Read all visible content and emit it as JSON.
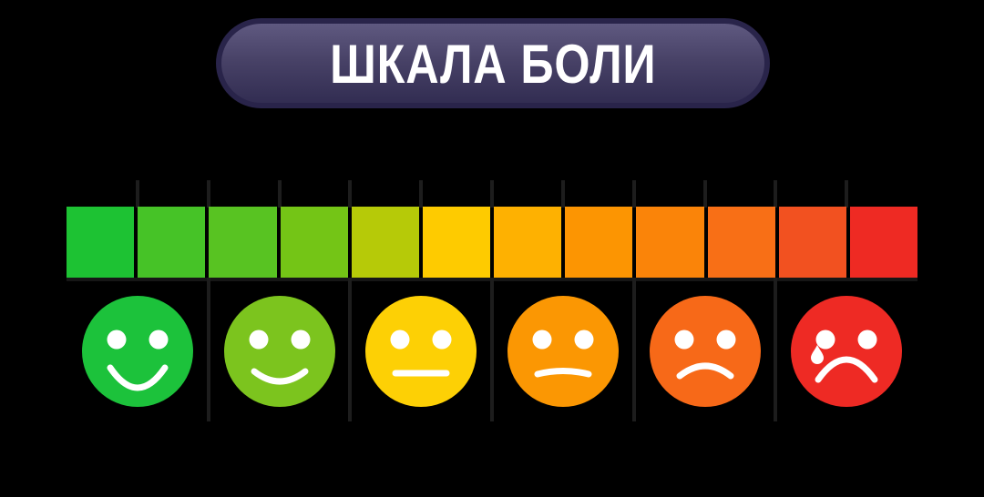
{
  "background_color": "#000000",
  "title": {
    "text": "ШКАЛА БОЛИ",
    "text_color": "#ffffff",
    "badge_border_color": "#29244a",
    "badge_gradient_top": "#5f5980",
    "badge_gradient_middle": "#474166",
    "badge_gradient_bottom": "#322d52"
  },
  "scale_bar": {
    "segment_count": 12,
    "segment_colors": [
      "#1dc233",
      "#46c327",
      "#58c322",
      "#74c516",
      "#b6ca08",
      "#fecb00",
      "#feb101",
      "#fc9502",
      "#fa8409",
      "#f86f16",
      "#f25120",
      "#ee2a23"
    ],
    "tick_color": "#1d1d1d",
    "divider_color": "#1d1d1d",
    "baseline_color": "#161616"
  },
  "faces": [
    {
      "icon": "happy-face-icon",
      "color": "#1cc23b",
      "mouth": "big-smile",
      "tear": false
    },
    {
      "icon": "slight-smile-face-icon",
      "color": "#7cc41e",
      "mouth": "smile",
      "tear": false
    },
    {
      "icon": "neutral-face-icon",
      "color": "#fdd005",
      "mouth": "neutral",
      "tear": false
    },
    {
      "icon": "uneasy-face-icon",
      "color": "#fb9703",
      "mouth": "slight-frown",
      "tear": false
    },
    {
      "icon": "sad-face-icon",
      "color": "#f76918",
      "mouth": "frown",
      "tear": false
    },
    {
      "icon": "crying-face-icon",
      "color": "#ee2a24",
      "mouth": "big-frown",
      "tear": true
    }
  ]
}
